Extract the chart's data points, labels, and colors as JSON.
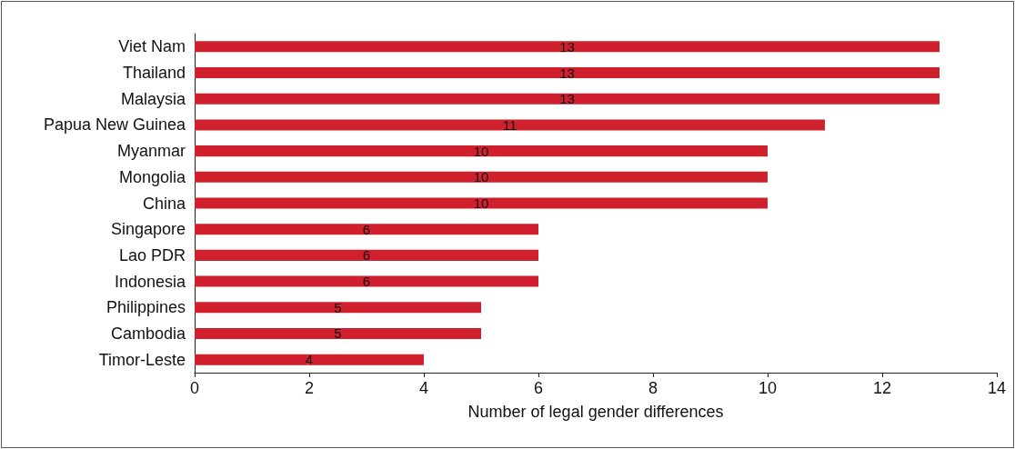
{
  "chart_data": {
    "type": "bar",
    "orientation": "horizontal",
    "xlabel": "Number of legal gender differences",
    "categories": [
      "Viet Nam",
      "Thailand",
      "Malaysia",
      "Papua New Guinea",
      "Myanmar",
      "Mongolia",
      "China",
      "Singapore",
      "Lao PDR",
      "Indonesia",
      "Philippines",
      "Cambodia",
      "Timor-Leste"
    ],
    "values": [
      13,
      13,
      13,
      11,
      10,
      10,
      10,
      6,
      6,
      6,
      5,
      5,
      4
    ],
    "color": "#d0202e",
    "xlim": [
      0,
      14
    ],
    "xticks": [
      0,
      2,
      4,
      6,
      8,
      10,
      12,
      14
    ],
    "grid": false,
    "data_labels": true
  }
}
